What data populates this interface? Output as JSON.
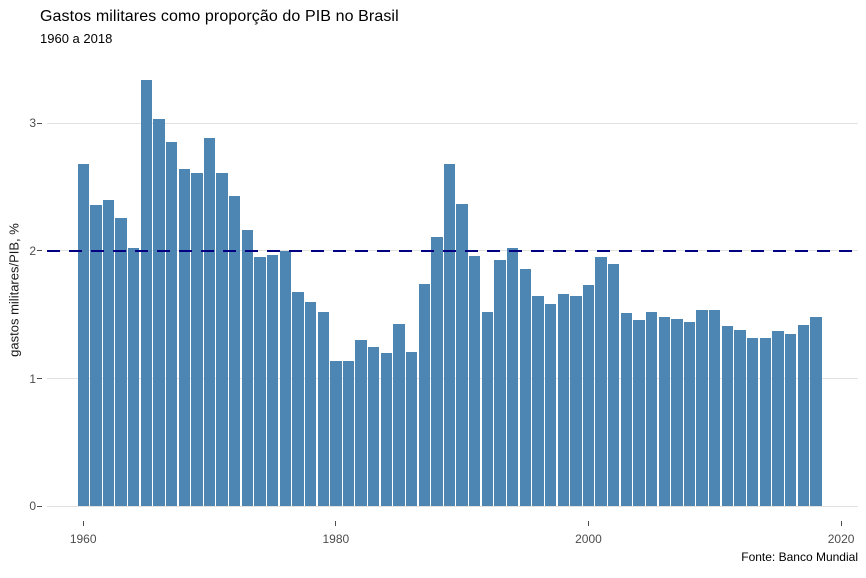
{
  "header": {
    "title": "Gastos militares como proporção do PIB no Brasil",
    "subtitle": "1960 a 2018"
  },
  "caption": "Fonte: Banco Mundial",
  "chart_data": {
    "type": "bar",
    "title": "Gastos militares como proporção do PIB no Brasil",
    "subtitle": "1960 a 2018",
    "xlabel": "",
    "ylabel": "gastos militares/PIB, %",
    "source": "Fonte: Banco Mundial",
    "x": [
      1960,
      1961,
      1962,
      1963,
      1964,
      1965,
      1966,
      1967,
      1968,
      1969,
      1970,
      1971,
      1972,
      1973,
      1974,
      1975,
      1976,
      1977,
      1978,
      1979,
      1980,
      1981,
      1982,
      1983,
      1984,
      1985,
      1986,
      1987,
      1988,
      1989,
      1990,
      1991,
      1992,
      1993,
      1994,
      1995,
      1996,
      1997,
      1998,
      1999,
      2000,
      2001,
      2002,
      2003,
      2004,
      2005,
      2006,
      2007,
      2008,
      2009,
      2010,
      2011,
      2012,
      2013,
      2014,
      2015,
      2016,
      2017,
      2018
    ],
    "values": [
      2.68,
      2.36,
      2.4,
      2.26,
      2.02,
      3.34,
      3.03,
      2.85,
      2.64,
      2.61,
      2.88,
      2.61,
      2.43,
      2.16,
      1.95,
      1.97,
      2.0,
      1.68,
      1.6,
      1.52,
      1.14,
      1.14,
      1.3,
      1.25,
      1.2,
      1.43,
      1.21,
      1.74,
      2.11,
      2.68,
      2.37,
      1.96,
      1.52,
      1.93,
      2.02,
      1.86,
      1.65,
      1.58,
      1.66,
      1.65,
      1.73,
      1.95,
      1.9,
      1.51,
      1.46,
      1.52,
      1.48,
      1.47,
      1.44,
      1.54,
      1.54,
      1.41,
      1.38,
      1.32,
      1.32,
      1.37,
      1.35,
      1.42,
      1.48
    ],
    "yticks": [
      0,
      1,
      2,
      3
    ],
    "xticks": [
      1960,
      1980,
      2000,
      2020
    ],
    "ylim": [
      0,
      3.45
    ],
    "xlim": [
      1957,
      2021
    ],
    "grid": "horizontal-major-only",
    "legend": "none",
    "reference_line": {
      "y": 2,
      "style": "dashed"
    },
    "colors": {
      "bar": "#4D86B3",
      "reference_line": "#000080",
      "gridline": "#E2E2E2",
      "tick_text": "#4D4D4D",
      "text": "#000000",
      "background": "#FFFFFF"
    }
  }
}
